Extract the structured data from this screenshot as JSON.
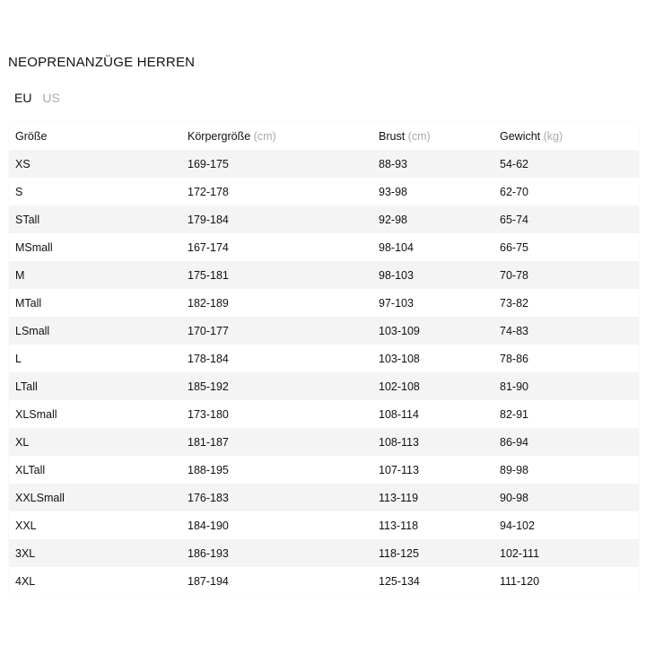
{
  "title": "NEOPRENANZÜGE HERREN",
  "unit_tabs": [
    {
      "label": "EU",
      "active": true
    },
    {
      "label": "US",
      "active": false
    }
  ],
  "headers": [
    {
      "label": "Größe",
      "unit": ""
    },
    {
      "label": "Körpergröße",
      "unit": "(cm)"
    },
    {
      "label": "Brust",
      "unit": "(cm)"
    },
    {
      "label": "Gewicht",
      "unit": "(kg)"
    }
  ],
  "rows": [
    [
      "XS",
      "169-175",
      "88-93",
      "54-62"
    ],
    [
      "S",
      "172-178",
      "93-98",
      "62-70"
    ],
    [
      "STall",
      "179-184",
      "92-98",
      "65-74"
    ],
    [
      "MSmall",
      "167-174",
      "98-104",
      "66-75"
    ],
    [
      "M",
      "175-181",
      "98-103",
      "70-78"
    ],
    [
      "MTall",
      "182-189",
      "97-103",
      "73-82"
    ],
    [
      "LSmall",
      "170-177",
      "103-109",
      "74-83"
    ],
    [
      "L",
      "178-184",
      "103-108",
      "78-86"
    ],
    [
      "LTall",
      "185-192",
      "102-108",
      "81-90"
    ],
    [
      "XLSmall",
      "173-180",
      "108-114",
      "82-91"
    ],
    [
      "XL",
      "181-187",
      "108-113",
      "86-94"
    ],
    [
      "XLTall",
      "188-195",
      "107-113",
      "89-98"
    ],
    [
      "XXLSmall",
      "176-183",
      "113-119",
      "90-98"
    ],
    [
      "XXL",
      "184-190",
      "113-118",
      "94-102"
    ],
    [
      "3XL",
      "186-193",
      "118-125",
      "102-111"
    ],
    [
      "4XL",
      "187-194",
      "125-134",
      "111-120"
    ]
  ]
}
